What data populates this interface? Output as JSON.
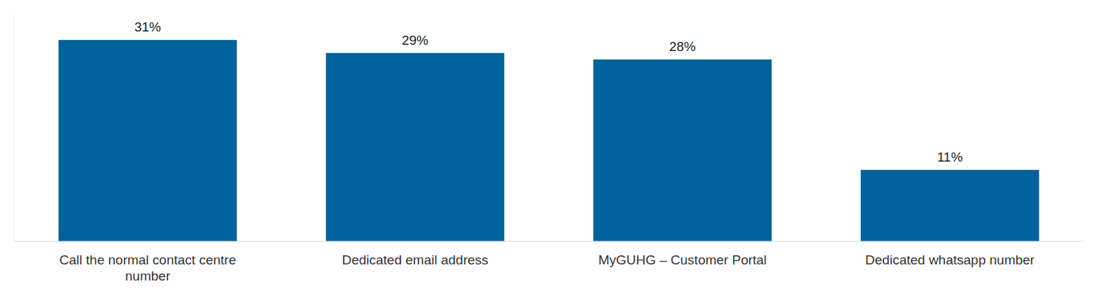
{
  "chart_data": {
    "type": "bar",
    "categories": [
      "Call the normal contact centre number",
      "Dedicated email address",
      "MyGUHG – Customer Portal",
      "Dedicated whatsapp number"
    ],
    "values": [
      31,
      29,
      28,
      11
    ],
    "value_labels": [
      "31%",
      "29%",
      "28%",
      "11%"
    ],
    "color": "#00629b",
    "ylim": [
      0,
      35
    ],
    "grid": false,
    "tick_labels": "x",
    "data_labels": true
  }
}
